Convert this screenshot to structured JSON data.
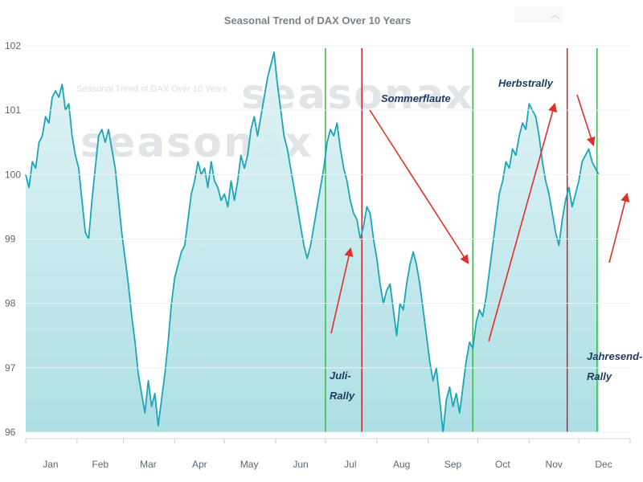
{
  "chart_data": {
    "type": "line",
    "title": "Seasonal Trend of DAX Over 10 Years",
    "watermark": "seasonax",
    "y_ticks": [
      "102",
      "101",
      "100",
      "99",
      "98",
      "97",
      "96"
    ],
    "ylim": [
      96,
      102
    ],
    "xlim": [
      0,
      365
    ],
    "months": [
      {
        "label": "Jan",
        "day": 15
      },
      {
        "label": "Feb",
        "day": 45
      },
      {
        "label": "Mar",
        "day": 74
      },
      {
        "label": "Apr",
        "day": 105
      },
      {
        "label": "May",
        "day": 135
      },
      {
        "label": "Jun",
        "day": 166
      },
      {
        "label": "Jul",
        "day": 196
      },
      {
        "label": "Aug",
        "day": 227
      },
      {
        "label": "Sep",
        "day": 258
      },
      {
        "label": "Oct",
        "day": 288
      },
      {
        "label": "Nov",
        "day": 319
      },
      {
        "label": "Dec",
        "day": 349
      }
    ],
    "colors": {
      "line": "#1aa6b7",
      "fill": "#bfe6ea",
      "green": "#3cb54a",
      "red": "#c0272d",
      "arrow": "#e0302a"
    },
    "series": [
      {
        "points": [
          [
            0,
            100.0
          ],
          [
            2,
            99.8
          ],
          [
            4,
            100.2
          ],
          [
            6,
            100.1
          ],
          [
            8,
            100.5
          ],
          [
            10,
            100.6
          ],
          [
            12,
            100.9
          ],
          [
            14,
            100.8
          ],
          [
            16,
            101.2
          ],
          [
            18,
            101.3
          ],
          [
            20,
            101.2
          ],
          [
            22,
            101.4
          ],
          [
            24,
            101.0
          ],
          [
            26,
            101.1
          ],
          [
            28,
            100.6
          ],
          [
            30,
            100.3
          ],
          [
            32,
            100.1
          ],
          [
            34,
            99.6
          ],
          [
            36,
            99.1
          ],
          [
            38,
            99.0
          ],
          [
            40,
            99.6
          ],
          [
            42,
            100.1
          ],
          [
            44,
            100.6
          ],
          [
            46,
            100.7
          ],
          [
            48,
            100.5
          ],
          [
            50,
            100.7
          ],
          [
            52,
            100.4
          ],
          [
            54,
            100.1
          ],
          [
            56,
            99.6
          ],
          [
            58,
            99.1
          ],
          [
            60,
            98.7
          ],
          [
            62,
            98.3
          ],
          [
            64,
            97.8
          ],
          [
            66,
            97.4
          ],
          [
            68,
            96.9
          ],
          [
            70,
            96.6
          ],
          [
            72,
            96.3
          ],
          [
            74,
            96.8
          ],
          [
            76,
            96.4
          ],
          [
            78,
            96.6
          ],
          [
            80,
            96.1
          ],
          [
            82,
            96.5
          ],
          [
            84,
            96.9
          ],
          [
            86,
            97.4
          ],
          [
            88,
            98.0
          ],
          [
            90,
            98.4
          ],
          [
            92,
            98.6
          ],
          [
            94,
            98.8
          ],
          [
            96,
            98.9
          ],
          [
            98,
            99.3
          ],
          [
            100,
            99.7
          ],
          [
            102,
            99.9
          ],
          [
            104,
            100.2
          ],
          [
            106,
            100.0
          ],
          [
            108,
            100.1
          ],
          [
            110,
            99.8
          ],
          [
            112,
            100.2
          ],
          [
            114,
            99.9
          ],
          [
            116,
            99.8
          ],
          [
            118,
            99.6
          ],
          [
            120,
            99.7
          ],
          [
            122,
            99.5
          ],
          [
            124,
            99.9
          ],
          [
            126,
            99.6
          ],
          [
            128,
            99.9
          ],
          [
            130,
            100.3
          ],
          [
            132,
            100.1
          ],
          [
            134,
            100.3
          ],
          [
            136,
            100.7
          ],
          [
            138,
            100.9
          ],
          [
            140,
            100.6
          ],
          [
            142,
            100.9
          ],
          [
            144,
            101.2
          ],
          [
            146,
            101.5
          ],
          [
            148,
            101.7
          ],
          [
            150,
            101.9
          ],
          [
            152,
            101.4
          ],
          [
            154,
            101.0
          ],
          [
            156,
            100.6
          ],
          [
            158,
            100.4
          ],
          [
            160,
            100.1
          ],
          [
            162,
            99.8
          ],
          [
            164,
            99.5
          ],
          [
            166,
            99.2
          ],
          [
            168,
            98.9
          ],
          [
            170,
            98.7
          ],
          [
            172,
            98.9
          ],
          [
            174,
            99.2
          ],
          [
            176,
            99.5
          ],
          [
            178,
            99.8
          ],
          [
            180,
            100.1
          ],
          [
            182,
            100.5
          ],
          [
            184,
            100.7
          ],
          [
            186,
            100.6
          ],
          [
            188,
            100.8
          ],
          [
            190,
            100.4
          ],
          [
            192,
            100.1
          ],
          [
            194,
            99.9
          ],
          [
            196,
            99.6
          ],
          [
            198,
            99.4
          ],
          [
            200,
            99.3
          ],
          [
            202,
            99.0
          ],
          [
            204,
            99.2
          ],
          [
            206,
            99.5
          ],
          [
            208,
            99.4
          ],
          [
            210,
            99.0
          ],
          [
            212,
            98.7
          ],
          [
            214,
            98.3
          ],
          [
            216,
            98.0
          ],
          [
            218,
            98.2
          ],
          [
            220,
            98.3
          ],
          [
            222,
            97.9
          ],
          [
            224,
            97.5
          ],
          [
            226,
            98.0
          ],
          [
            228,
            97.9
          ],
          [
            230,
            98.3
          ],
          [
            232,
            98.6
          ],
          [
            234,
            98.8
          ],
          [
            236,
            98.6
          ],
          [
            238,
            98.3
          ],
          [
            240,
            97.9
          ],
          [
            242,
            97.5
          ],
          [
            244,
            97.1
          ],
          [
            246,
            96.8
          ],
          [
            248,
            97.0
          ],
          [
            250,
            96.5
          ],
          [
            252,
            96.0
          ],
          [
            254,
            96.5
          ],
          [
            256,
            96.7
          ],
          [
            258,
            96.4
          ],
          [
            260,
            96.6
          ],
          [
            262,
            96.3
          ],
          [
            264,
            96.7
          ],
          [
            266,
            97.1
          ],
          [
            268,
            97.4
          ],
          [
            270,
            97.3
          ],
          [
            272,
            97.7
          ],
          [
            274,
            97.9
          ],
          [
            276,
            97.8
          ],
          [
            278,
            98.1
          ],
          [
            280,
            98.5
          ],
          [
            282,
            98.9
          ],
          [
            284,
            99.3
          ],
          [
            286,
            99.7
          ],
          [
            288,
            99.9
          ],
          [
            290,
            100.2
          ],
          [
            292,
            100.1
          ],
          [
            294,
            100.4
          ],
          [
            296,
            100.3
          ],
          [
            298,
            100.6
          ],
          [
            300,
            100.8
          ],
          [
            302,
            100.7
          ],
          [
            304,
            101.1
          ],
          [
            306,
            101.0
          ],
          [
            308,
            100.9
          ],
          [
            310,
            100.6
          ],
          [
            312,
            100.2
          ],
          [
            314,
            99.9
          ],
          [
            316,
            99.7
          ],
          [
            318,
            99.4
          ],
          [
            320,
            99.1
          ],
          [
            322,
            98.9
          ],
          [
            324,
            99.3
          ],
          [
            326,
            99.6
          ],
          [
            328,
            99.8
          ],
          [
            330,
            99.5
          ],
          [
            332,
            99.7
          ],
          [
            334,
            99.9
          ],
          [
            336,
            100.2
          ],
          [
            338,
            100.3
          ],
          [
            340,
            100.4
          ],
          [
            342,
            100.2
          ],
          [
            344,
            100.1
          ],
          [
            346,
            100.0
          ]
        ]
      }
    ],
    "vertical_lines": [
      {
        "day": 181,
        "color": "green"
      },
      {
        "day": 203,
        "color": "red"
      },
      {
        "day": 270,
        "color": "green"
      },
      {
        "day": 327,
        "color": "red"
      },
      {
        "day": 345,
        "color": "green"
      }
    ],
    "annotations": [
      {
        "text": "Juli-"
      },
      {
        "text": "Rally"
      },
      {
        "text": "Sommerflaute"
      },
      {
        "text": "Herbstrally"
      },
      {
        "text": "Jahresend-"
      },
      {
        "text": "Rally"
      }
    ]
  }
}
